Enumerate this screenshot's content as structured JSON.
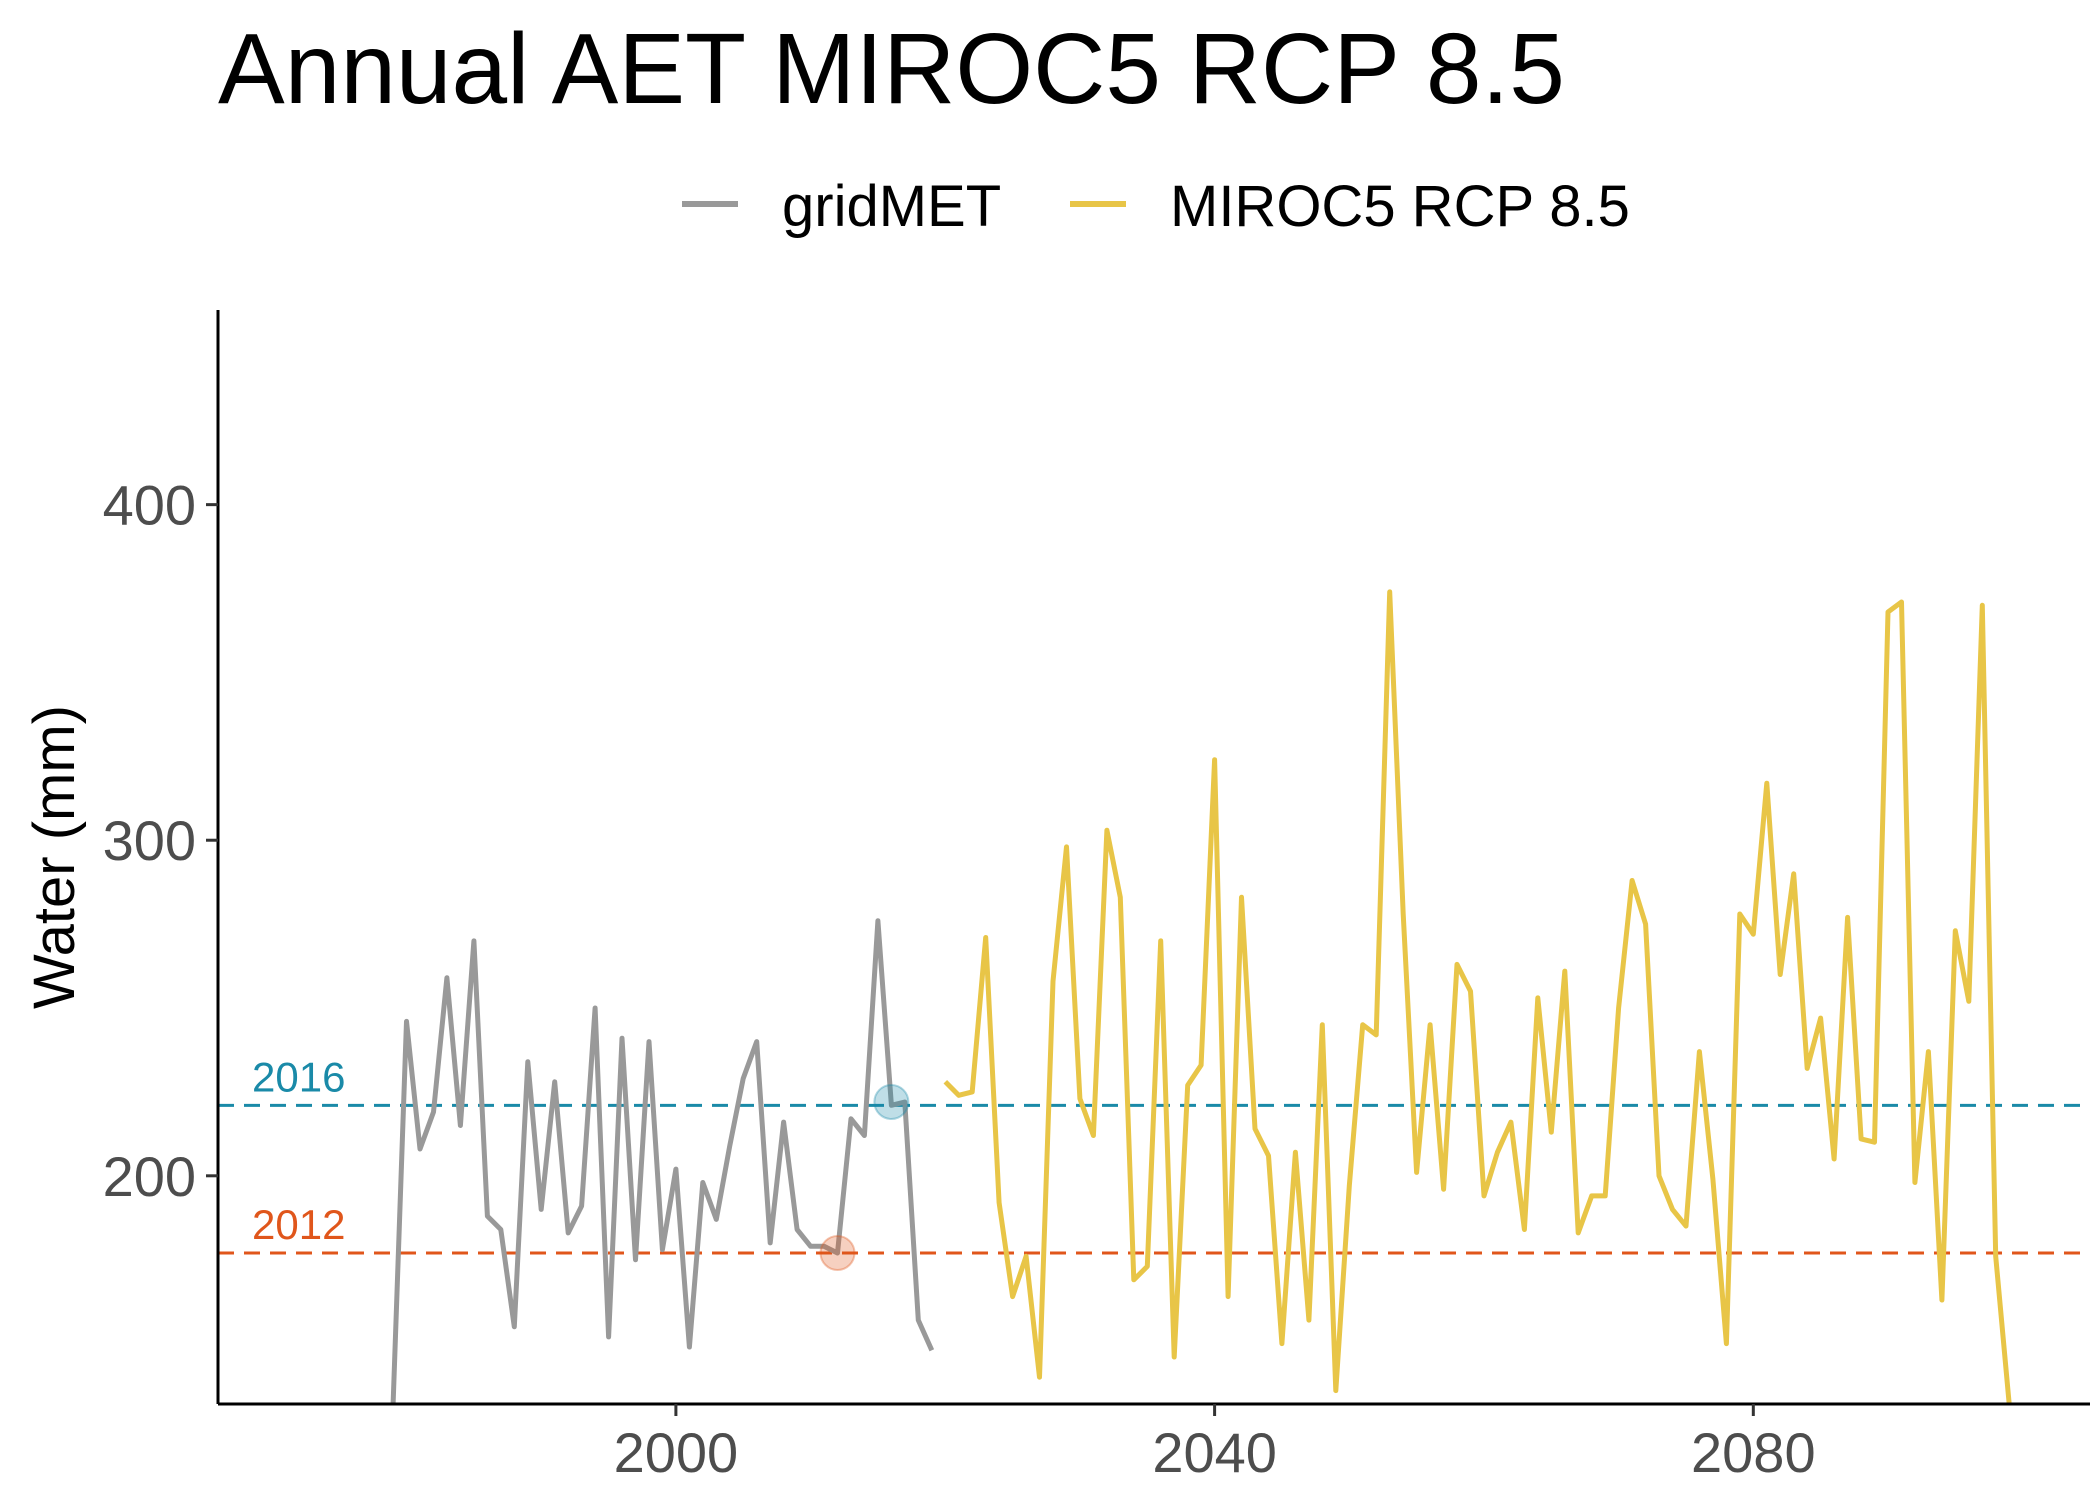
{
  "chart_data": {
    "type": "line",
    "title": "Annual AET MIROC5 RCP 8.5",
    "xlabel": "",
    "ylabel": "Water (mm)",
    "xlim": [
      1966,
      2105
    ],
    "ylim": [
      132,
      458
    ],
    "x_ticks": [
      2000,
      2040,
      2080
    ],
    "y_ticks": [
      200,
      300,
      400
    ],
    "grid": false,
    "legend_position": "top",
    "series": [
      {
        "name": "gridMET",
        "color": "#999999",
        "x": [
          1979,
          1980,
          1981,
          1982,
          1983,
          1984,
          1985,
          1986,
          1987,
          1988,
          1989,
          1990,
          1991,
          1992,
          1993,
          1994,
          1995,
          1996,
          1997,
          1998,
          1999,
          2000,
          2001,
          2002,
          2003,
          2004,
          2005,
          2006,
          2007,
          2008,
          2009,
          2010,
          2011,
          2012,
          2013,
          2014,
          2015,
          2016,
          2017,
          2018,
          2019
        ],
        "y": [
          132,
          246,
          208,
          219,
          259,
          215,
          270,
          188,
          184,
          155,
          234,
          190,
          228,
          183,
          191,
          250,
          152,
          241,
          175,
          240,
          178,
          202,
          149,
          198,
          187,
          209,
          229,
          240,
          180,
          216,
          184,
          179,
          179,
          177,
          217,
          212,
          276,
          221,
          222,
          157,
          148
        ]
      },
      {
        "name": "MIROC5 RCP 8.5",
        "color": "#e8c547",
        "x": [
          2020,
          2021,
          2022,
          2023,
          2024,
          2025,
          2026,
          2027,
          2028,
          2029,
          2030,
          2031,
          2032,
          2033,
          2034,
          2035,
          2036,
          2037,
          2038,
          2039,
          2040,
          2041,
          2042,
          2043,
          2044,
          2045,
          2046,
          2047,
          2048,
          2049,
          2050,
          2051,
          2052,
          2053,
          2054,
          2055,
          2056,
          2057,
          2058,
          2059,
          2060,
          2061,
          2062,
          2063,
          2064,
          2065,
          2066,
          2067,
          2068,
          2069,
          2070,
          2071,
          2072,
          2073,
          2074,
          2075,
          2076,
          2077,
          2078,
          2079,
          2080,
          2081,
          2082,
          2083,
          2084,
          2085,
          2086,
          2087,
          2088,
          2089,
          2090,
          2091,
          2092,
          2093,
          2094,
          2095,
          2096,
          2097,
          2098,
          2099,
          2100
        ],
        "y": [
          228,
          224,
          225,
          271,
          192,
          164,
          176,
          140,
          258,
          298,
          223,
          212,
          303,
          283,
          169,
          173,
          270,
          146,
          227,
          233,
          324,
          164,
          283,
          214,
          206,
          150,
          207,
          157,
          245,
          136,
          197,
          245,
          242,
          374,
          278,
          201,
          245,
          196,
          263,
          255,
          194,
          207,
          216,
          184,
          253,
          213,
          261,
          183,
          194,
          194,
          250,
          288,
          275,
          200,
          190,
          185,
          237,
          199,
          150,
          278,
          272,
          317,
          260,
          290,
          232,
          247,
          205,
          277,
          211,
          210,
          368,
          371,
          198,
          237,
          163,
          273,
          252,
          370,
          176,
          132,
          0
        ]
      }
    ],
    "reference_lines": [
      {
        "label": "2016",
        "value": 221,
        "color": "#1a8aa8",
        "marker_x": 2016,
        "marker_y": 222
      },
      {
        "label": "2012",
        "value": 177,
        "color": "#e0561b",
        "marker_x": 2012,
        "marker_y": 177
      }
    ]
  }
}
